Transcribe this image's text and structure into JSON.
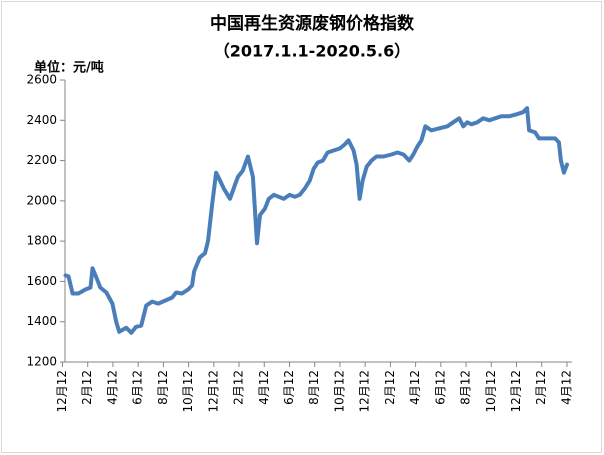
{
  "chart_data": {
    "type": "line",
    "title": "中国再生资源废钢价格指数",
    "subtitle": "（2017.1.1-2020.5.6）",
    "y_label": "单位：元/吨",
    "x": [
      0.12,
      0.24,
      0.4,
      0.63,
      0.91,
      1.11,
      1.19,
      1.34,
      1.5,
      1.74,
      1.98,
      2.13,
      2.25,
      2.53,
      2.73,
      2.92,
      3.12,
      3.32,
      3.56,
      3.79,
      4.07,
      4.35,
      4.51,
      4.74,
      4.98,
      5.14,
      5.22,
      5.45,
      5.65,
      5.77,
      5.93,
      6.09,
      6.25,
      6.4,
      6.64,
      6.84,
      6.96,
      7.15,
      7.35,
      7.55,
      7.71,
      7.83,
      8.02,
      8.18,
      8.38,
      8.58,
      8.77,
      9.01,
      9.21,
      9.41,
      9.6,
      9.8,
      9.96,
      10.12,
      10.32,
      10.51,
      10.75,
      10.99,
      11.19,
      11.34,
      11.54,
      11.66,
      11.78,
      11.9,
      12.06,
      12.25,
      12.45,
      12.73,
      13.04,
      13.28,
      13.52,
      13.75,
      13.91,
      14.07,
      14.23,
      14.39,
      14.62,
      14.94,
      15.26,
      15.49,
      15.73,
      15.89,
      16.05,
      16.21,
      16.44,
      16.68,
      16.92,
      17.15,
      17.39,
      17.71,
      18.02,
      18.26,
      18.42,
      18.5,
      18.74,
      18.89,
      19.21,
      19.53,
      19.68,
      19.76,
      19.88,
      20.0
    ],
    "series": [
      {
        "name": "废钢价格指数",
        "color": "#4a7ebb",
        "values": [
          1630,
          1625,
          1540,
          1540,
          1560,
          1570,
          1665,
          1620,
          1570,
          1545,
          1490,
          1400,
          1350,
          1370,
          1345,
          1375,
          1380,
          1480,
          1500,
          1490,
          1505,
          1520,
          1545,
          1540,
          1560,
          1580,
          1650,
          1720,
          1740,
          1800,
          1980,
          2140,
          2100,
          2060,
          2010,
          2080,
          2120,
          2150,
          2220,
          2120,
          1790,
          1930,
          1960,
          2010,
          2030,
          2020,
          2010,
          2030,
          2020,
          2030,
          2060,
          2100,
          2160,
          2190,
          2200,
          2240,
          2250,
          2260,
          2280,
          2300,
          2250,
          2180,
          2010,
          2100,
          2170,
          2200,
          2220,
          2220,
          2230,
          2240,
          2230,
          2200,
          2230,
          2270,
          2300,
          2370,
          2350,
          2360,
          2370,
          2390,
          2410,
          2370,
          2390,
          2380,
          2390,
          2410,
          2400,
          2410,
          2420,
          2420,
          2430,
          2440,
          2460,
          2350,
          2340,
          2310,
          2310,
          2310,
          2290,
          2200,
          2140,
          2180
        ]
      }
    ],
    "xlim": [
      0.1,
      20.2
    ],
    "xticks": [
      {
        "value": 0,
        "label": "12月12"
      },
      {
        "value": 1,
        "label": "2月12"
      },
      {
        "value": 2,
        "label": "4月12"
      },
      {
        "value": 3,
        "label": "6月12"
      },
      {
        "value": 4,
        "label": "8月12"
      },
      {
        "value": 5,
        "label": "10月12"
      },
      {
        "value": 6,
        "label": "12月12"
      },
      {
        "value": 7,
        "label": "2月12"
      },
      {
        "value": 8,
        "label": "4月12"
      },
      {
        "value": 9,
        "label": "6月12"
      },
      {
        "value": 10,
        "label": "8月12"
      },
      {
        "value": 11,
        "label": "10月12"
      },
      {
        "value": 12,
        "label": "12月12"
      },
      {
        "value": 13,
        "label": "2月12"
      },
      {
        "value": 14,
        "label": "4月12"
      },
      {
        "value": 15,
        "label": "6月12"
      },
      {
        "value": 16,
        "label": "8月12"
      },
      {
        "value": 17,
        "label": "10月12"
      },
      {
        "value": 18,
        "label": "12月12"
      },
      {
        "value": 19,
        "label": "2月12"
      },
      {
        "value": 20,
        "label": "4月12"
      }
    ],
    "ylim": [
      1200,
      2600
    ],
    "yticks": [
      1200,
      1400,
      1600,
      1800,
      2000,
      2200,
      2400,
      2600
    ],
    "grid": false
  }
}
